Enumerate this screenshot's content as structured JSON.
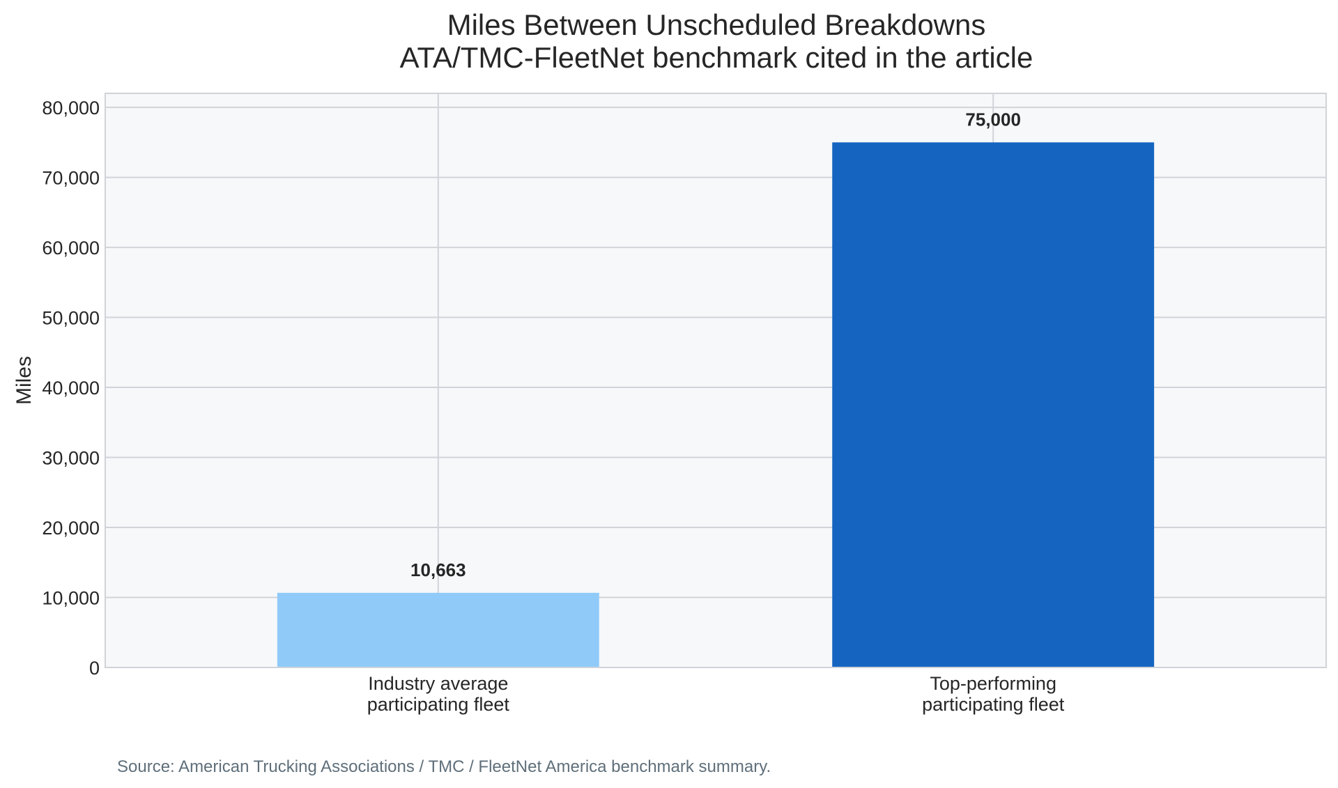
{
  "chart_data": {
    "type": "bar",
    "title_lines": [
      "Miles Between Unscheduled Breakdowns",
      "ATA/TMC-FleetNet benchmark cited in the article"
    ],
    "categories": [
      [
        "Industry average",
        "participating fleet"
      ],
      [
        "Top-performing",
        "participating fleet"
      ]
    ],
    "values": [
      10663,
      75000
    ],
    "data_labels": [
      "10,663",
      "75,000"
    ],
    "bar_colors": [
      "#90CAF9",
      "#1565C0"
    ],
    "xlabel": "",
    "ylabel": "Miles",
    "ylim": [
      0,
      82000
    ],
    "yticks": [
      0,
      10000,
      20000,
      30000,
      40000,
      50000,
      60000,
      70000,
      80000
    ],
    "ytick_labels": [
      "0",
      "10,000",
      "20,000",
      "30,000",
      "40,000",
      "50,000",
      "60,000",
      "70,000",
      "80,000"
    ],
    "grid": true,
    "plot_background": "#f7f8fa",
    "grid_color": "#d0d3d8",
    "source": "Source: American Trucking Associations / TMC / FleetNet America benchmark summary."
  }
}
